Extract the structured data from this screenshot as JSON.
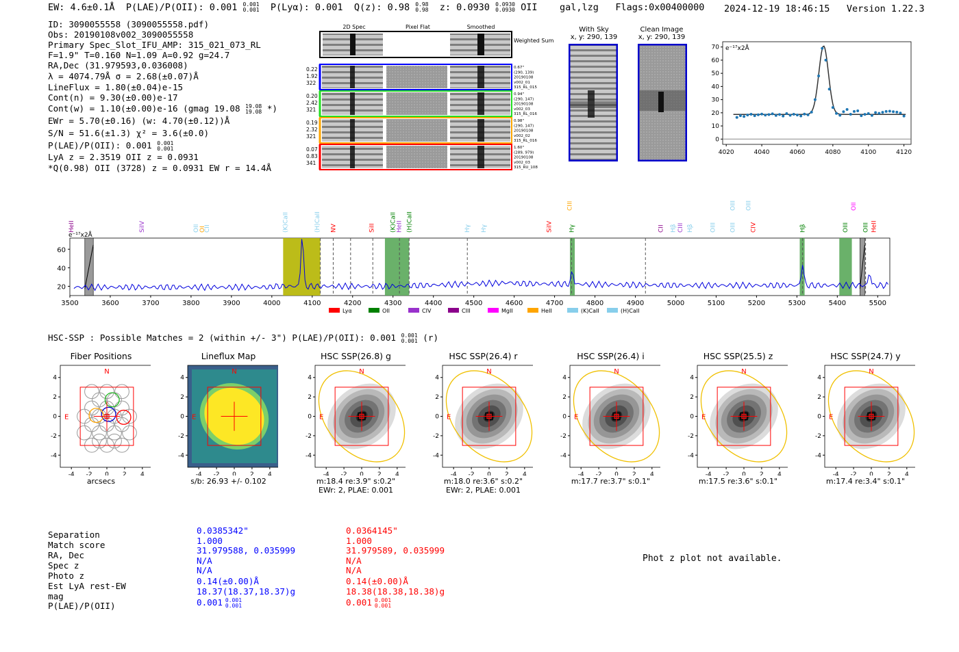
{
  "header": {
    "ew": "EW: 4.6±0.1Å",
    "plae_label": "P(LAE)/P(OII): 0.001",
    "plae_hi": "0.001",
    "plae_lo": "0.001",
    "plya": "P(Lyα): 0.001",
    "qz": "Q(z): 0.98",
    "qz_hi": "0.98",
    "qz_lo": "0.98",
    "z": "z: 0.0930",
    "z_hi": "0.0930",
    "z_lo": "0.0930",
    "line": "OII",
    "cls": "gal,lzg",
    "flags": "Flags:0x00400000",
    "datetime": "2024-12-19 18:46:15",
    "version": "Version 1.22.3"
  },
  "info": {
    "id": "ID: 3090055558 (3090055558.pdf)",
    "obs": "Obs: 20190108v002_3090055558",
    "primary": "Primary Spec_Slot_IFU_AMP: 315_021_073_RL",
    "fwhm": "F=1.9\"  T=0.160  N=1.09  A=0.92  g=24.7",
    "radec": "RA,Dec (31.979593,0.036008)",
    "lambda": "λ = 4074.79Å  σ = 2.68(±0.07)Å",
    "lineflux": "LineFlux = 1.80(±0.04)e-15",
    "contn": "Cont(n) = 9.30(±0.00)e-17",
    "contw": "Cont(w) = 1.10(±0.00)e-16 (gmag 19.08",
    "contw_hi": "19.08",
    "contw_lo": "19.08",
    "contw_tail": "*)",
    "ewr": "EWr = 5.70(±0.16) (w: 4.70(±0.12))Å",
    "sn": "S/N = 51.6(±1.3)  χ² = 3.6(±0.0)",
    "plae": "P(LAE)/P(OII): 0.001",
    "plae_hi": "0.001",
    "plae_lo": "0.001",
    "lya": "LyA z = 2.3519  OII z = 0.0931",
    "q": "*Q(0.98) OII (3728) z = 0.0931  EW r = 14.4Å"
  },
  "cutouts": {
    "col_headers": [
      "2D Spec",
      "Pixel Flat",
      "Smoothed"
    ],
    "weighted_sum": "Weighted Sum",
    "rows": [
      {
        "left": [
          "0.22",
          "1.92",
          "322"
        ],
        "right": [
          "0.67\"",
          "(290, 139)",
          "20190108",
          "v002_01",
          "315_RL_015"
        ],
        "color": "#0000ff"
      },
      {
        "left": [
          "0.20",
          "2.42",
          "321"
        ],
        "right": [
          "0.94\"",
          "(290, 147)",
          "20190108",
          "v002_03",
          "315_RL_016"
        ],
        "color": "#22dd22"
      },
      {
        "left": [
          "0.19",
          "2.32",
          "321"
        ],
        "right": [
          "0.98\"",
          "(290, 147)",
          "20190108",
          "v002_02",
          "315_RL_016"
        ],
        "color": "#ffa500"
      },
      {
        "left": [
          "0.07",
          "0.83",
          "341"
        ],
        "right": [
          "1.60\"",
          "(289, 979)",
          "20190108",
          "v002_03",
          "315_RU_108"
        ],
        "color": "#ff0000"
      }
    ]
  },
  "ccd": {
    "with_sky_title": "With Sky",
    "with_sky_xy": "x, y: 290, 139",
    "clean_title": "Clean Image",
    "clean_xy": "x, y: 290, 139"
  },
  "zoom_chart": {
    "ylabel": "e⁻¹⁷x2Å",
    "xticks": [
      "4020",
      "4040",
      "4060",
      "4080",
      "4100",
      "4120"
    ],
    "yticks": [
      "0",
      "10",
      "20",
      "30",
      "40",
      "50",
      "60",
      "70"
    ],
    "xlim": [
      4018,
      4124
    ],
    "ylim": [
      -4,
      74
    ],
    "x": [
      4026,
      4028,
      4030,
      4032,
      4034,
      4036,
      4038,
      4040,
      4042,
      4044,
      4046,
      4048,
      4050,
      4052,
      4054,
      4056,
      4058,
      4060,
      4062,
      4064,
      4066,
      4068,
      4070,
      4072,
      4074,
      4076,
      4078,
      4080,
      4082,
      4084,
      4086,
      4088,
      4090,
      4092,
      4094,
      4096,
      4098,
      4100,
      4102,
      4104,
      4106,
      4108,
      4110,
      4112,
      4114,
      4116,
      4118,
      4120
    ],
    "y": [
      16.5,
      17.8,
      17.2,
      18.3,
      18.9,
      17.8,
      18.5,
      19.0,
      18.2,
      18.6,
      19.2,
      18.0,
      18.7,
      17.5,
      19.4,
      18.1,
      18.9,
      18.3,
      17.6,
      19.0,
      18.4,
      20.5,
      30.0,
      48.0,
      69.0,
      60.0,
      38.0,
      24.0,
      19.5,
      18.1,
      20.8,
      22.5,
      18.9,
      21.0,
      21.5,
      17.8,
      18.8,
      19.4,
      18.0,
      20.2,
      19.6,
      20.4,
      21.0,
      21.2,
      20.8,
      20.5,
      19.8,
      17.5
    ]
  },
  "main_spectrum": {
    "ylabel": "e⁻¹⁷x2Å",
    "xticks": [
      "3500",
      "3600",
      "3700",
      "3800",
      "3900",
      "4000",
      "4100",
      "4200",
      "4300",
      "4400",
      "4500",
      "4600",
      "4700",
      "4800",
      "4900",
      "5000",
      "5100",
      "5200",
      "5300",
      "5400",
      "5500"
    ],
    "yticks": [
      "20",
      "40",
      "60"
    ],
    "xlim": [
      3500,
      5530
    ],
    "ylim": [
      10,
      72
    ],
    "emission_x": [
      4075,
      4744,
      5314,
      5480
    ],
    "emission_height": [
      61,
      14,
      24,
      14
    ],
    "line_labels": [
      {
        "t": "HeII",
        "x": 3503,
        "c": "#8b008b"
      },
      {
        "t": "SiIV",
        "x": 3678,
        "c": "#9932cc"
      },
      {
        "t": "OII",
        "x": 3812,
        "c": "#87ceeb"
      },
      {
        "t": "OI",
        "x": 3827,
        "c": "#ffa500"
      },
      {
        "t": "CII",
        "x": 3839,
        "c": "#87ceeb"
      },
      {
        "t": "(K)CaII",
        "x": 4033,
        "c": "#87ceeb"
      },
      {
        "t": "(H)CaII",
        "x": 4112,
        "c": "#87ceeb"
      },
      {
        "t": "NV",
        "x": 4152,
        "c": "#ff0000"
      },
      {
        "t": "SiII",
        "x": 4247,
        "c": "#ff0000"
      },
      {
        "t": "(K)CaII",
        "x": 4300,
        "c": "#008000"
      },
      {
        "t": "HeII",
        "x": 4315,
        "c": "#9932cc"
      },
      {
        "t": "(H)CaII",
        "x": 4340,
        "c": "#008000"
      },
      {
        "t": "Hγ",
        "x": 4484,
        "c": "#87ceeb"
      },
      {
        "t": "Hγ",
        "x": 4524,
        "c": "#87ceeb"
      },
      {
        "t": "SiIV",
        "x": 4686,
        "c": "#ff0000"
      },
      {
        "t": "Hγ",
        "x": 4742,
        "c": "#008000"
      },
      {
        "t": "CIII",
        "x": 4737,
        "c": "#ffa500",
        "high": true
      },
      {
        "t": "CII",
        "x": 4963,
        "c": "#8b008b"
      },
      {
        "t": "Hβ",
        "x": 4993,
        "c": "#87ceeb"
      },
      {
        "t": "CIII",
        "x": 5011,
        "c": "#9932cc"
      },
      {
        "t": "Hβ",
        "x": 5035,
        "c": "#87ceeb"
      },
      {
        "t": "OIII",
        "x": 5092,
        "c": "#87ceeb"
      },
      {
        "t": "OIII",
        "x": 5141,
        "c": "#87ceeb"
      },
      {
        "t": "CIV",
        "x": 5192,
        "c": "#ff0000"
      },
      {
        "t": "OIII",
        "x": 5141,
        "c": "#87ceeb",
        "high": true
      },
      {
        "t": "OIII",
        "x": 5180,
        "c": "#87ceeb",
        "high": true
      },
      {
        "t": "Hβ",
        "x": 5314,
        "c": "#008000"
      },
      {
        "t": "OIII",
        "x": 5420,
        "c": "#008000"
      },
      {
        "t": "OII",
        "x": 5440,
        "c": "#ff00ff",
        "high": true
      },
      {
        "t": "OIII",
        "x": 5470,
        "c": "#008000"
      },
      {
        "t": "HeII",
        "x": 5490,
        "c": "#ff0000"
      }
    ],
    "legend": [
      {
        "label": "Lyα",
        "color": "#ff0000"
      },
      {
        "label": "OII",
        "color": "#008000"
      },
      {
        "label": "CIV",
        "color": "#9932cc"
      },
      {
        "label": "CIII",
        "color": "#8b008b"
      },
      {
        "label": "MgII",
        "color": "#ff00ff"
      },
      {
        "label": "HeII",
        "color": "#ffa500"
      },
      {
        "label": "(K)CaII",
        "color": "#87ceeb"
      },
      {
        "label": "(H)CaII",
        "color": "#87ceeb"
      }
    ]
  },
  "hsc": {
    "heading": "HSC-SSP : Possible Matches = 2 (within +/- 3\")  P(LAE)/P(OII): 0.001",
    "heading_hi": "0.001",
    "heading_lo": "0.001",
    "heading_tail": "(r)",
    "panels": [
      {
        "title": "Fiber Positions",
        "cap1": "arcsecs",
        "cap2": ""
      },
      {
        "title": "Lineflux Map",
        "cap1": "s/b: 26.93 +/- 0.102",
        "cap2": ""
      },
      {
        "title": "HSC SSP(26.8) g",
        "cap1": "m:18.4  re:3.9\"  s:0.2\"",
        "cap2": "EWr: 2, PLAE: 0.001"
      },
      {
        "title": "HSC SSP(26.4) r",
        "cap1": "m:18.0  re:3.6\"  s:0.2\"",
        "cap2": "EWr: 2, PLAE: 0.001"
      },
      {
        "title": "HSC SSP(26.4) i",
        "cap1": "m:17.7  re:3.7\"  s:0.1\"",
        "cap2": ""
      },
      {
        "title": "HSC SSP(25.5) z",
        "cap1": "m:17.5  re:3.6\"  s:0.1\"",
        "cap2": ""
      },
      {
        "title": "HSC SSP(24.7) y",
        "cap1": "m:17.4  re:3.4\"  s:0.1\"",
        "cap2": ""
      }
    ],
    "ticks": [
      "4",
      "2",
      "0",
      "-2",
      "-4"
    ],
    "xticks": [
      "-4",
      "-2",
      "0",
      "2",
      "4"
    ],
    "n_label": "N",
    "e_label": "E"
  },
  "table": {
    "labels": [
      "Separation",
      "Match score",
      "RA, Dec",
      "Spec z",
      "Photo z",
      "Est LyA rest-EW",
      "mag",
      "P(LAE)/P(OII)"
    ],
    "blue": [
      "0.0385342\"",
      "1.000",
      "31.979588, 0.035999",
      "N/A",
      "N/A",
      "0.14(±0.00)Å",
      "18.37(18.37,18.37)g",
      "0.001"
    ],
    "red": [
      "0.0364145\"",
      "1.000",
      "31.979589, 0.035999",
      "N/A",
      "N/A",
      "0.14(±0.00)Å",
      "18.38(18.38,18.38)g",
      "0.001"
    ],
    "blue_plae_hi": "0.001",
    "blue_plae_lo": "0.001",
    "red_plae_hi": "0.001",
    "red_plae_lo": "0.001",
    "photz_msg": "Phot z plot not available."
  }
}
